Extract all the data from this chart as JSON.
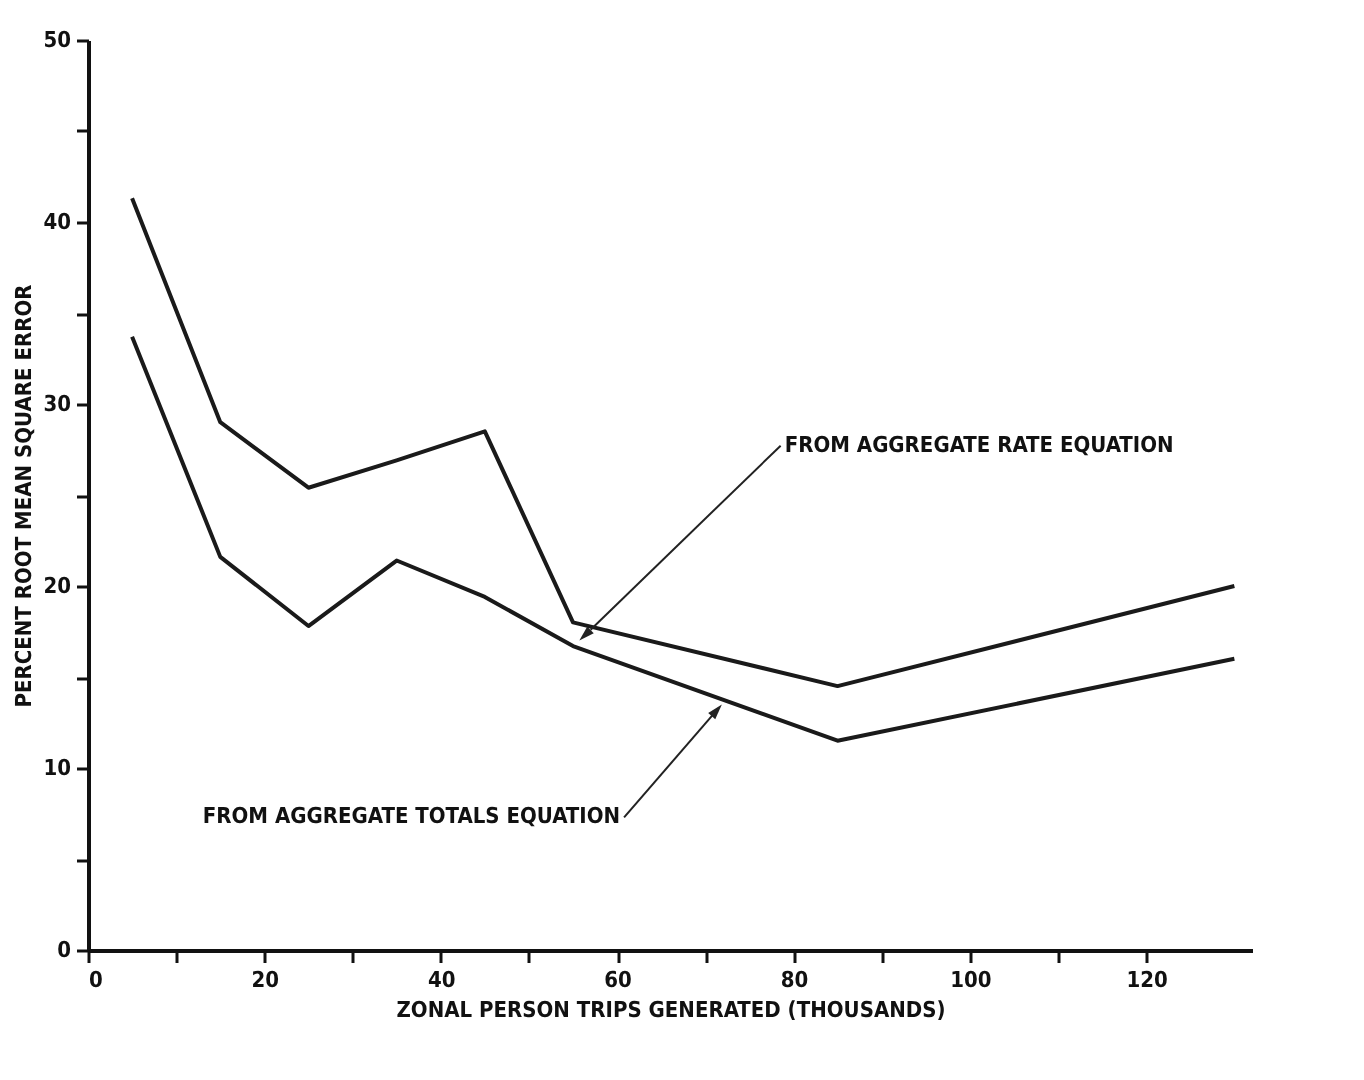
{
  "chart_data": {
    "type": "line",
    "xlabel": "ZONAL PERSON TRIPS GENERATED (THOUSANDS)",
    "ylabel": "PERCENT ROOT MEAN SQUARE ERROR",
    "x": [
      5,
      15,
      25,
      35,
      45,
      55,
      85,
      130
    ],
    "series": [
      {
        "color": "#1a1a1a",
        "values": [
          41.3,
          29,
          25.4,
          26.9,
          28.5,
          18,
          14.5,
          20
        ]
      },
      {
        "color": "#1a1a1a",
        "values": [
          33.7,
          21.6,
          17.8,
          21.4,
          19.4,
          16.7,
          11.5,
          16
        ]
      }
    ],
    "xlim": [
      0,
      132
    ],
    "ylim": [
      0,
      50
    ],
    "xticks": [
      0,
      {
        "value": 10,
        "label": null
      },
      20,
      {
        "value": 30,
        "label": null
      },
      40,
      {
        "value": 50,
        "label": null
      },
      60,
      {
        "value": 70,
        "label": null
      },
      80,
      {
        "value": 90,
        "label": null
      },
      100,
      {
        "value": 110,
        "label": null
      },
      120
    ],
    "yticks": [
      0,
      {
        "value": 5,
        "label": null
      },
      10,
      {
        "value": 15,
        "label": null
      },
      20,
      {
        "value": 25,
        "label": null
      },
      30,
      {
        "value": 35,
        "label": null
      },
      40,
      {
        "value": 45,
        "label": null
      },
      50
    ],
    "annotations": [
      {
        "text": "FROM AGGREGATE RATE EQUATION",
        "x": 57,
        "y": 17.6
      },
      {
        "text": "FROM AGGREGATE TOTALS EQUATION",
        "x": 71,
        "y": 13
      }
    ],
    "grid": false,
    "marker": "none",
    "line_style": "solid"
  }
}
